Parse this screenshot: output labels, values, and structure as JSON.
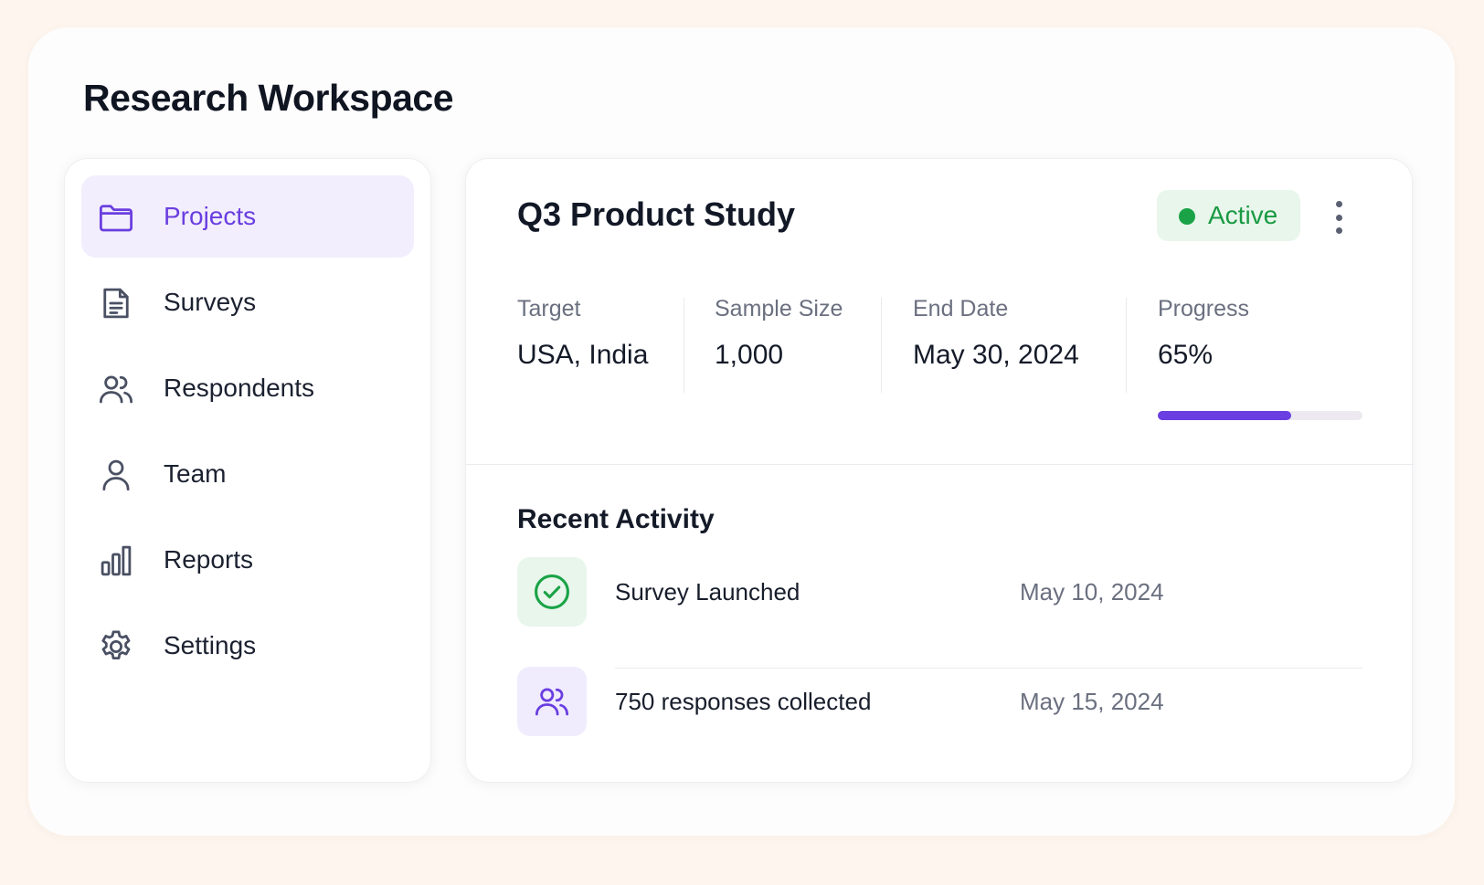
{
  "app": {
    "title": "Research Workspace"
  },
  "sidebar": {
    "items": [
      {
        "label": "Projects",
        "icon": "folder-icon",
        "active": true
      },
      {
        "label": "Surveys",
        "icon": "document-icon",
        "active": false
      },
      {
        "label": "Respondents",
        "icon": "users-icon",
        "active": false
      },
      {
        "label": "Team",
        "icon": "user-icon",
        "active": false
      },
      {
        "label": "Reports",
        "icon": "bar-chart-icon",
        "active": false
      },
      {
        "label": "Settings",
        "icon": "gear-icon",
        "active": false
      }
    ]
  },
  "project": {
    "title": "Q3 Product Study",
    "status": "Active",
    "status_color": "#1aa346",
    "more_icon": "more-vertical-icon",
    "stats": [
      {
        "label": "Target",
        "value": "USA, India"
      },
      {
        "label": "Sample Size",
        "value": "1,000"
      },
      {
        "label": "End Date",
        "value": "May 30, 2024"
      },
      {
        "label": "Progress",
        "value": "65%"
      }
    ],
    "progress_fraction": 0.65
  },
  "activity": {
    "title": "Recent Activity",
    "items": [
      {
        "title": "Survey Launched",
        "date": "May 10, 2024",
        "icon": "check-circle-icon"
      },
      {
        "title": "750 responses collected",
        "date": "May 15, 2024",
        "icon": "users-icon"
      }
    ]
  },
  "colors": {
    "accent": "#6a3ee0",
    "success": "#1aa346",
    "page_background": "#fdf5ee"
  }
}
